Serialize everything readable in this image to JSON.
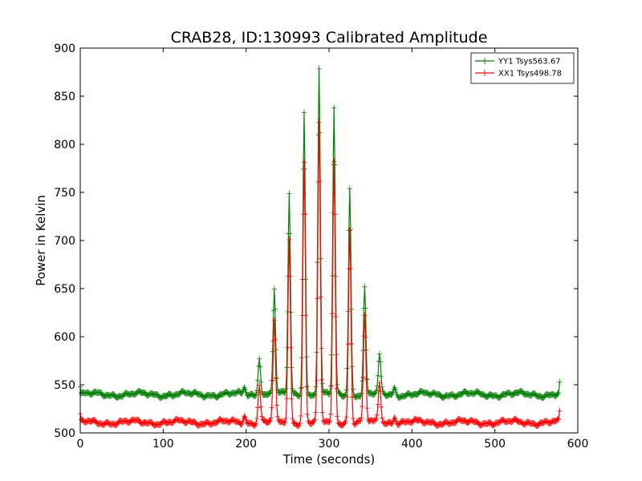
{
  "chart_data": {
    "type": "line",
    "title": "CRAB28, ID:130993 Calibrated Amplitude",
    "xlabel": "Time (seconds)",
    "ylabel": "Power in Kelvin",
    "xlim": [
      0,
      600
    ],
    "ylim": [
      500,
      900
    ],
    "xticks": [
      0,
      100,
      200,
      300,
      400,
      500,
      600
    ],
    "yticks": [
      500,
      550,
      600,
      650,
      700,
      750,
      800,
      850,
      900
    ],
    "grid": false,
    "legend_position": "top-right",
    "x_extent": [
      0,
      578
    ],
    "sample_step": 1,
    "series": [
      {
        "name": "YY1 Tsys563.67",
        "color": "#008000",
        "marker": "+",
        "baseline": 540,
        "edge_points": [
          {
            "x": 0,
            "y": 548
          },
          {
            "x": 578,
            "y": 553
          }
        ],
        "peaks": [
          {
            "x": 198,
            "y": 547
          },
          {
            "x": 216,
            "y": 580
          },
          {
            "x": 234,
            "y": 650
          },
          {
            "x": 252,
            "y": 748
          },
          {
            "x": 270,
            "y": 836
          },
          {
            "x": 288,
            "y": 878
          },
          {
            "x": 306,
            "y": 836
          },
          {
            "x": 325,
            "y": 755
          },
          {
            "x": 343,
            "y": 650
          },
          {
            "x": 361,
            "y": 580
          },
          {
            "x": 379,
            "y": 547
          }
        ]
      },
      {
        "name": "XX1 Tsys498.78",
        "color": "#ff0000",
        "marker": "+",
        "baseline": 511,
        "edge_points": [
          {
            "x": 0,
            "y": 520
          },
          {
            "x": 578,
            "y": 523
          }
        ],
        "peaks": [
          {
            "x": 198,
            "y": 518
          },
          {
            "x": 216,
            "y": 550
          },
          {
            "x": 234,
            "y": 615
          },
          {
            "x": 252,
            "y": 700
          },
          {
            "x": 270,
            "y": 782
          },
          {
            "x": 288,
            "y": 820
          },
          {
            "x": 306,
            "y": 781
          },
          {
            "x": 325,
            "y": 712
          },
          {
            "x": 343,
            "y": 620
          },
          {
            "x": 361,
            "y": 553
          },
          {
            "x": 379,
            "y": 518
          }
        ]
      }
    ]
  }
}
